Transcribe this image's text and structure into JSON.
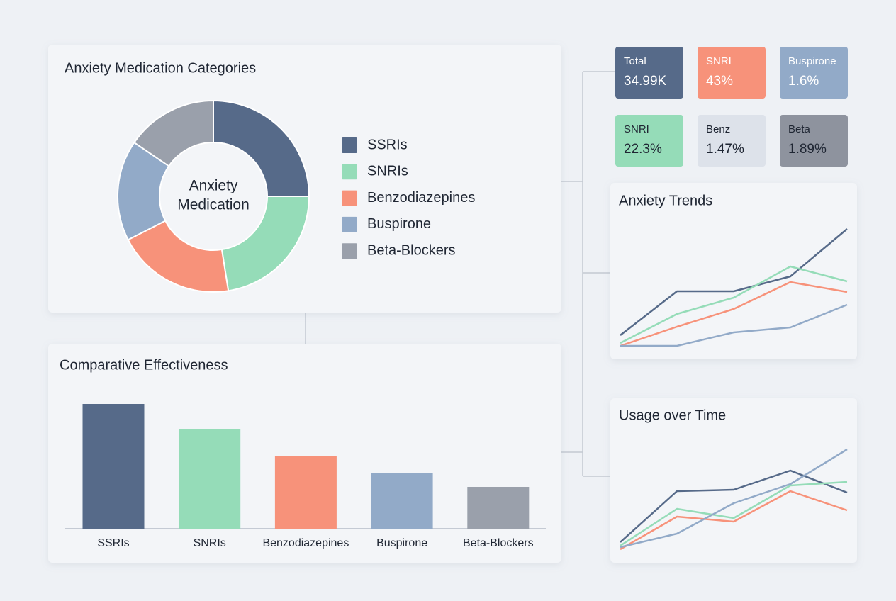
{
  "stats": [
    {
      "label": "Total",
      "value": "34.99K",
      "color": "#566a89",
      "text_color": "#ffffff"
    },
    {
      "label": "SNRI",
      "value": "43%",
      "color": "#f7927a",
      "text_color": "#ffffff"
    },
    {
      "label": "Buspirone",
      "value": "1.6%",
      "color": "#92aac8",
      "text_color": "#ffffff"
    },
    {
      "label": "SNRI",
      "value": "22.3%",
      "color": "#95dcb8",
      "text_color": "#1f2633"
    },
    {
      "label": "Benz",
      "value": "1.47%",
      "color": "#dde2ea",
      "text_color": "#1f2633"
    },
    {
      "label": "Beta",
      "value": "1.89%",
      "color": "#8e939e",
      "text_color": "#1f2633"
    }
  ],
  "chart_data": [
    {
      "type": "pie",
      "title": "Anxiety Medication Categories",
      "center_label": [
        "Anxiety",
        "Medication"
      ],
      "categories": [
        "SSRIs",
        "SNRIs",
        "Benzodiazepines",
        "Buspirone",
        "Beta-Blockers"
      ],
      "values": [
        25,
        22.5,
        20,
        17,
        15.5
      ],
      "colors": [
        "#566a89",
        "#95dcb8",
        "#f7927a",
        "#92aac8",
        "#9aa0ab"
      ]
    },
    {
      "type": "bar",
      "title": "Comparative Effectiveness",
      "categories": [
        "SSRIs",
        "SNRIs",
        "Benzodiazepines",
        "Buspirone",
        "Beta-Blockers"
      ],
      "values": [
        176,
        141,
        102,
        78,
        59
      ],
      "colors": [
        "#566a89",
        "#95dcb8",
        "#f7927a",
        "#92aac8",
        "#9aa0ab"
      ]
    },
    {
      "type": "line",
      "title": "Anxiety Trends",
      "series": [
        {
          "color": "#566a89",
          "values": [
            27,
            89,
            89,
            110,
            177
          ]
        },
        {
          "color": "#95dcb8",
          "values": [
            16,
            57,
            80,
            124,
            103
          ]
        },
        {
          "color": "#f7927a",
          "values": [
            12,
            39,
            64,
            102,
            88
          ]
        },
        {
          "color": "#92aac8",
          "values": [
            12,
            12,
            31,
            38,
            70
          ]
        }
      ]
    },
    {
      "type": "line",
      "title": "Usage over Time",
      "series": [
        {
          "color": "#566a89",
          "values": [
            35,
            107,
            109,
            136,
            105
          ]
        },
        {
          "color": "#95dcb8",
          "values": [
            30,
            82,
            69,
            115,
            120
          ]
        },
        {
          "color": "#f7927a",
          "values": [
            25,
            71,
            64,
            107,
            80
          ]
        },
        {
          "color": "#92aac8",
          "values": [
            28,
            47,
            90,
            117,
            166
          ]
        }
      ]
    }
  ]
}
